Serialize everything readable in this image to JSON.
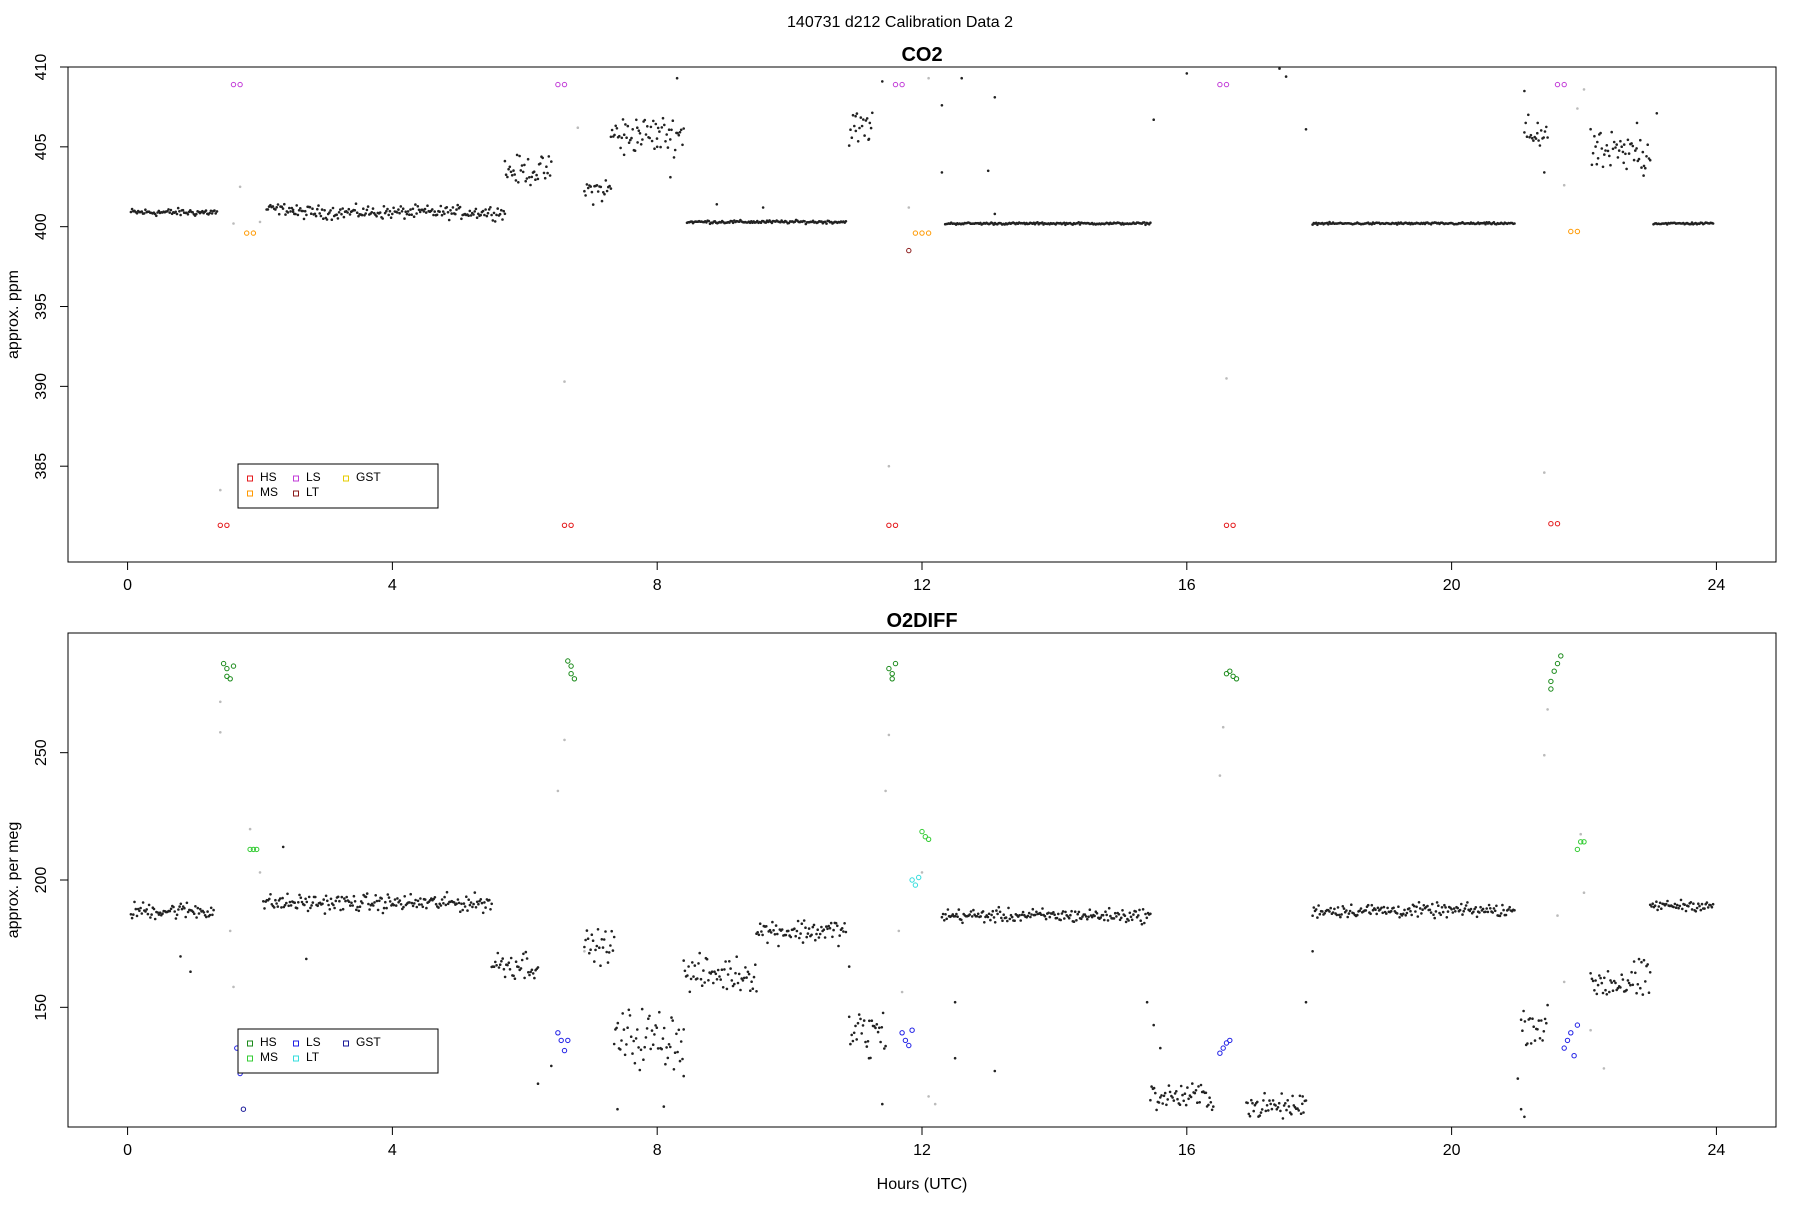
{
  "figure": {
    "title": "140731   d212   Calibration Data 2"
  },
  "chart_data": [
    {
      "type": "scatter",
      "title": "CO2",
      "xlabel": "",
      "ylabel": "approx. ppm",
      "xlim": [
        -0.9,
        24.9
      ],
      "ylim": [
        379,
        410
      ],
      "xticks": [
        "0",
        "4",
        "8",
        "12",
        "16",
        "20",
        "24"
      ],
      "yticks": [
        "385",
        "390",
        "395",
        "400",
        "405",
        "410"
      ],
      "legend": {
        "position": "bottom-left",
        "entries": [
          {
            "label": "HS",
            "color": "#e41a1c"
          },
          {
            "label": "MS",
            "color": "#ff9900"
          },
          {
            "label": "LS",
            "color": "#c23bd8"
          },
          {
            "label": "LT",
            "color": "#8b1a1a"
          },
          {
            "label": "GST",
            "color": "#e6cc00"
          }
        ]
      },
      "background_color": "#222222",
      "series": [
        {
          "name": "HS",
          "color": "#e41a1c",
          "points": [
            [
              1.4,
              381.3
            ],
            [
              1.5,
              381.3
            ],
            [
              6.6,
              381.3
            ],
            [
              6.7,
              381.3
            ],
            [
              11.5,
              381.3
            ],
            [
              11.6,
              381.3
            ],
            [
              16.6,
              381.3
            ],
            [
              16.7,
              381.3
            ],
            [
              21.5,
              381.4
            ],
            [
              21.6,
              381.4
            ]
          ]
        },
        {
          "name": "LS",
          "color": "#c23bd8",
          "points": [
            [
              1.6,
              408.9
            ],
            [
              1.7,
              408.9
            ],
            [
              6.5,
              408.9
            ],
            [
              6.6,
              408.9
            ],
            [
              11.6,
              408.9
            ],
            [
              11.7,
              408.9
            ],
            [
              16.5,
              408.9
            ],
            [
              16.6,
              408.9
            ],
            [
              21.6,
              408.9
            ],
            [
              21.7,
              408.9
            ]
          ]
        },
        {
          "name": "MS",
          "color": "#ff9900",
          "points": [
            [
              1.8,
              399.6
            ],
            [
              1.9,
              399.6
            ],
            [
              11.9,
              399.6
            ],
            [
              12.0,
              399.6
            ],
            [
              12.1,
              399.6
            ],
            [
              21.8,
              399.7
            ],
            [
              21.9,
              399.7
            ]
          ]
        },
        {
          "name": "LT",
          "color": "#8b1a1a",
          "points": [
            [
              11.8,
              398.5
            ]
          ]
        },
        {
          "name": "",
          "color": "#bbbbbb",
          "points": [
            [
              1.4,
              383.5
            ],
            [
              1.6,
              400.2
            ],
            [
              1.7,
              402.5
            ],
            [
              6.8,
              406.2
            ],
            [
              6.6,
              390.3
            ],
            [
              11.5,
              385.0
            ],
            [
              11.8,
              401.2
            ],
            [
              12.1,
              409.3
            ],
            [
              16.6,
              390.5
            ],
            [
              21.4,
              384.6
            ],
            [
              21.7,
              402.6
            ],
            [
              21.9,
              407.4
            ],
            [
              22.0,
              408.6
            ],
            [
              2.0,
              400.3
            ]
          ]
        },
        {
          "name": "",
          "color": "#222222",
          "points": [
            [
              7.5,
              404.5
            ],
            [
              7.7,
              406.2
            ],
            [
              8.0,
              405.0
            ],
            [
              8.2,
              403.1
            ],
            [
              8.3,
              409.3
            ],
            [
              11.0,
              406.0
            ],
            [
              11.2,
              405.5
            ],
            [
              11.4,
              409.1
            ],
            [
              12.3,
              407.6
            ],
            [
              12.3,
              403.4
            ],
            [
              12.6,
              409.3
            ],
            [
              13.1,
              408.1
            ],
            [
              13.0,
              403.5
            ],
            [
              15.5,
              406.7
            ],
            [
              15.7,
              410.2
            ],
            [
              16.0,
              409.6
            ],
            [
              17.4,
              409.9
            ],
            [
              17.5,
              409.4
            ],
            [
              17.8,
              406.1
            ],
            [
              21.3,
              406.5
            ],
            [
              21.1,
              408.5
            ],
            [
              21.4,
              403.4
            ],
            [
              22.2,
              405.3
            ],
            [
              22.6,
              404.0
            ],
            [
              22.8,
              406.5
            ],
            [
              22.9,
              403.2
            ],
            [
              23.1,
              407.1
            ],
            [
              8.9,
              401.4
            ],
            [
              9.6,
              401.2
            ],
            [
              13.1,
              400.8
            ]
          ]
        }
      ],
      "segments": [
        {
          "x0": 0.05,
          "x1": 1.35,
          "y_mean": 400.9,
          "noise": 0.35,
          "color": "#222222"
        },
        {
          "x0": 2.1,
          "x1": 2.5,
          "y_mean": 401.1,
          "noise": 0.5,
          "color": "#222222"
        },
        {
          "x0": 2.5,
          "x1": 5.7,
          "y_mean": 400.9,
          "noise": 0.6,
          "color": "#222222"
        },
        {
          "x0": 5.7,
          "x1": 6.4,
          "y_mean": 403.5,
          "noise": 1.3,
          "color": "#222222"
        },
        {
          "x0": 6.9,
          "x1": 7.3,
          "y_mean": 402.3,
          "noise": 1.2,
          "color": "#222222"
        },
        {
          "x0": 7.3,
          "x1": 8.4,
          "y_mean": 405.8,
          "noise": 1.7,
          "color": "#222222"
        },
        {
          "x0": 8.45,
          "x1": 10.85,
          "y_mean": 400.3,
          "noise": 0.15,
          "color": "#222222"
        },
        {
          "x0": 10.9,
          "x1": 11.25,
          "y_mean": 406.2,
          "noise": 1.6,
          "color": "#222222"
        },
        {
          "x0": 12.35,
          "x1": 15.45,
          "y_mean": 400.2,
          "noise": 0.1,
          "color": "#222222"
        },
        {
          "x0": 17.9,
          "x1": 20.95,
          "y_mean": 400.2,
          "noise": 0.1,
          "color": "#222222"
        },
        {
          "x0": 21.1,
          "x1": 21.45,
          "y_mean": 405.8,
          "noise": 1.7,
          "color": "#222222"
        },
        {
          "x0": 22.1,
          "x1": 23.0,
          "y_mean": 404.6,
          "noise": 1.8,
          "color": "#222222"
        },
        {
          "x0": 23.05,
          "x1": 23.95,
          "y_mean": 400.2,
          "noise": 0.1,
          "color": "#222222"
        }
      ]
    },
    {
      "type": "scatter",
      "title": "O2DIFF",
      "xlabel": "Hours (UTC)",
      "ylabel": "approx. per meg",
      "xlim": [
        -0.9,
        24.9
      ],
      "ylim": [
        103,
        297
      ],
      "xticks": [
        "0",
        "4",
        "8",
        "12",
        "16",
        "20",
        "24"
      ],
      "yticks": [
        "150",
        "200",
        "250"
      ],
      "legend": {
        "position": "bottom-left",
        "entries": [
          {
            "label": "HS",
            "color": "#1a8a1a"
          },
          {
            "label": "MS",
            "color": "#33cc33"
          },
          {
            "label": "LS",
            "color": "#1f1fe6"
          },
          {
            "label": "LT",
            "color": "#33dddd"
          },
          {
            "label": "GST",
            "color": "#1a1a99"
          }
        ]
      },
      "background_color": "#222222",
      "series": [
        {
          "name": "HS",
          "color": "#1a8a1a",
          "points": [
            [
              1.45,
              285
            ],
            [
              1.5,
              283
            ],
            [
              1.5,
              280
            ],
            [
              1.55,
              279
            ],
            [
              1.6,
              284
            ],
            [
              6.65,
              286
            ],
            [
              6.7,
              284
            ],
            [
              6.7,
              281
            ],
            [
              6.75,
              279
            ],
            [
              11.5,
              283
            ],
            [
              11.55,
              281
            ],
            [
              11.55,
              279
            ],
            [
              11.6,
              285
            ],
            [
              16.65,
              282
            ],
            [
              16.7,
              280
            ],
            [
              16.75,
              279
            ],
            [
              16.6,
              281
            ],
            [
              21.5,
              278
            ],
            [
              21.55,
              282
            ],
            [
              21.6,
              285
            ],
            [
              21.65,
              288
            ],
            [
              21.5,
              275
            ]
          ]
        },
        {
          "name": "MS",
          "color": "#33cc33",
          "points": [
            [
              1.85,
              212
            ],
            [
              1.9,
              212
            ],
            [
              1.95,
              212
            ],
            [
              12.0,
              219
            ],
            [
              12.05,
              217
            ],
            [
              12.1,
              216
            ],
            [
              21.9,
              212
            ],
            [
              21.95,
              215
            ],
            [
              22.0,
              215
            ]
          ]
        },
        {
          "name": "LS",
          "color": "#1f1fe6",
          "points": [
            [
              1.65,
              134
            ],
            [
              1.7,
              124
            ],
            [
              6.5,
              140
            ],
            [
              6.55,
              137
            ],
            [
              6.6,
              133
            ],
            [
              6.65,
              137
            ],
            [
              11.7,
              140
            ],
            [
              11.75,
              137
            ],
            [
              11.8,
              135
            ],
            [
              11.85,
              141
            ],
            [
              16.5,
              132
            ],
            [
              16.55,
              134
            ],
            [
              16.6,
              136
            ],
            [
              16.65,
              137
            ],
            [
              21.7,
              134
            ],
            [
              21.75,
              137
            ],
            [
              21.8,
              140
            ],
            [
              21.85,
              131
            ],
            [
              21.9,
              143
            ]
          ]
        },
        {
          "name": "LT",
          "color": "#33dddd",
          "points": [
            [
              11.85,
              200
            ],
            [
              11.9,
              198
            ],
            [
              11.95,
              201
            ]
          ]
        },
        {
          "name": "GST",
          "color": "#1a1a99",
          "points": [
            [
              1.75,
              110
            ]
          ]
        },
        {
          "name": "",
          "color": "#bbbbbb",
          "points": [
            [
              1.4,
              270
            ],
            [
              1.4,
              258
            ],
            [
              1.55,
              180
            ],
            [
              1.6,
              158
            ],
            [
              1.85,
              220
            ],
            [
              2.0,
              203
            ],
            [
              6.5,
              235
            ],
            [
              6.6,
              255
            ],
            [
              6.9,
              172
            ],
            [
              11.45,
              235
            ],
            [
              11.5,
              257
            ],
            [
              11.65,
              180
            ],
            [
              11.7,
              156
            ],
            [
              12.0,
              203
            ],
            [
              12.1,
              115
            ],
            [
              12.2,
              112
            ],
            [
              16.5,
              241
            ],
            [
              16.55,
              260
            ],
            [
              21.4,
              249
            ],
            [
              21.45,
              267
            ],
            [
              21.6,
              186
            ],
            [
              21.7,
              160
            ],
            [
              21.95,
              218
            ],
            [
              22.0,
              195
            ],
            [
              22.1,
              141
            ],
            [
              22.3,
              126
            ]
          ]
        },
        {
          "name": "",
          "color": "#222222",
          "points": [
            [
              0.8,
              170
            ],
            [
              0.95,
              164
            ],
            [
              2.35,
              213
            ],
            [
              2.7,
              169
            ],
            [
              6.2,
              120
            ],
            [
              6.4,
              127
            ],
            [
              7.4,
              110
            ],
            [
              8.1,
              111
            ],
            [
              8.4,
              123
            ],
            [
              10.9,
              166
            ],
            [
              11.2,
              130
            ],
            [
              11.4,
              112
            ],
            [
              12.5,
              130
            ],
            [
              12.5,
              152
            ],
            [
              13.1,
              125
            ],
            [
              15.5,
              143
            ],
            [
              15.6,
              134
            ],
            [
              15.4,
              152
            ],
            [
              17.75,
              115
            ],
            [
              17.8,
              152
            ],
            [
              17.9,
              172
            ],
            [
              21.0,
              122
            ],
            [
              21.1,
              107
            ],
            [
              21.05,
              110
            ]
          ]
        }
      ],
      "segments": [
        {
          "x0": 0.05,
          "x1": 1.3,
          "y_mean": 188,
          "noise": 5,
          "color": "#222222"
        },
        {
          "x0": 2.05,
          "x1": 5.5,
          "y_mean": 191,
          "noise": 5,
          "color": "#222222"
        },
        {
          "x0": 5.5,
          "x1": 6.2,
          "y_mean": 167,
          "noise": 9,
          "color": "#222222"
        },
        {
          "x0": 6.9,
          "x1": 7.35,
          "y_mean": 174,
          "noise": 9,
          "color": "#222222"
        },
        {
          "x0": 7.35,
          "x1": 8.4,
          "y_mean": 138,
          "noise": 17,
          "color": "#222222"
        },
        {
          "x0": 8.4,
          "x1": 9.5,
          "y_mean": 163,
          "noise": 10,
          "color": "#222222"
        },
        {
          "x0": 9.5,
          "x1": 10.85,
          "y_mean": 180,
          "noise": 7,
          "color": "#222222"
        },
        {
          "x0": 10.9,
          "x1": 11.45,
          "y_mean": 140,
          "noise": 14,
          "color": "#222222"
        },
        {
          "x0": 12.3,
          "x1": 15.45,
          "y_mean": 186,
          "noise": 4,
          "color": "#222222"
        },
        {
          "x0": 15.45,
          "x1": 16.4,
          "y_mean": 115,
          "noise": 8,
          "color": "#222222"
        },
        {
          "x0": 16.9,
          "x1": 17.8,
          "y_mean": 111,
          "noise": 7,
          "color": "#222222"
        },
        {
          "x0": 17.9,
          "x1": 20.95,
          "y_mean": 188,
          "noise": 4,
          "color": "#222222"
        },
        {
          "x0": 21.05,
          "x1": 21.45,
          "y_mean": 143,
          "noise": 10,
          "color": "#222222"
        },
        {
          "x0": 22.1,
          "x1": 23.0,
          "y_mean": 160,
          "noise": 12,
          "color": "#222222"
        },
        {
          "x0": 23.0,
          "x1": 23.95,
          "y_mean": 190,
          "noise": 3,
          "color": "#222222"
        }
      ]
    }
  ]
}
